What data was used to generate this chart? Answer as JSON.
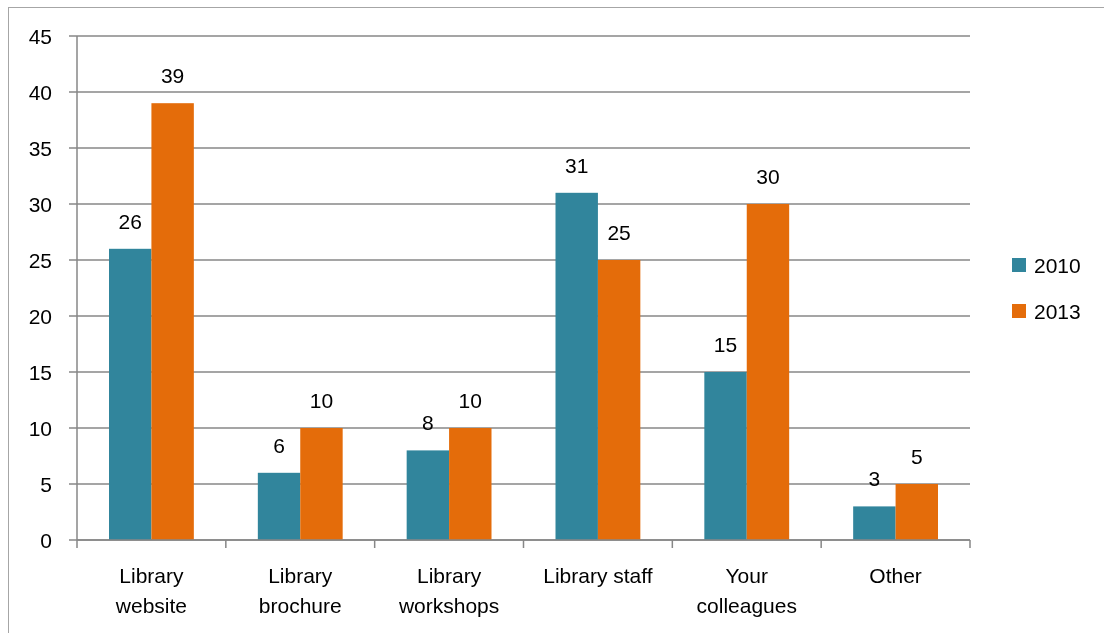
{
  "chart_data": {
    "type": "bar",
    "categories": [
      "Library website",
      "Library brochure",
      "Library workshops",
      "Library staff",
      "Your colleagues",
      "Other"
    ],
    "series": [
      {
        "name": "2010",
        "color": "#31859c",
        "values": [
          26,
          6,
          8,
          31,
          15,
          3
        ]
      },
      {
        "name": "2013",
        "color": "#e46c0a",
        "values": [
          39,
          10,
          10,
          25,
          30,
          5
        ]
      }
    ],
    "ylim": [
      0,
      45
    ],
    "yticks": [
      0,
      5,
      10,
      15,
      20,
      25,
      30,
      35,
      40,
      45
    ],
    "grid": "y",
    "legend": "right",
    "data_labels": true
  }
}
